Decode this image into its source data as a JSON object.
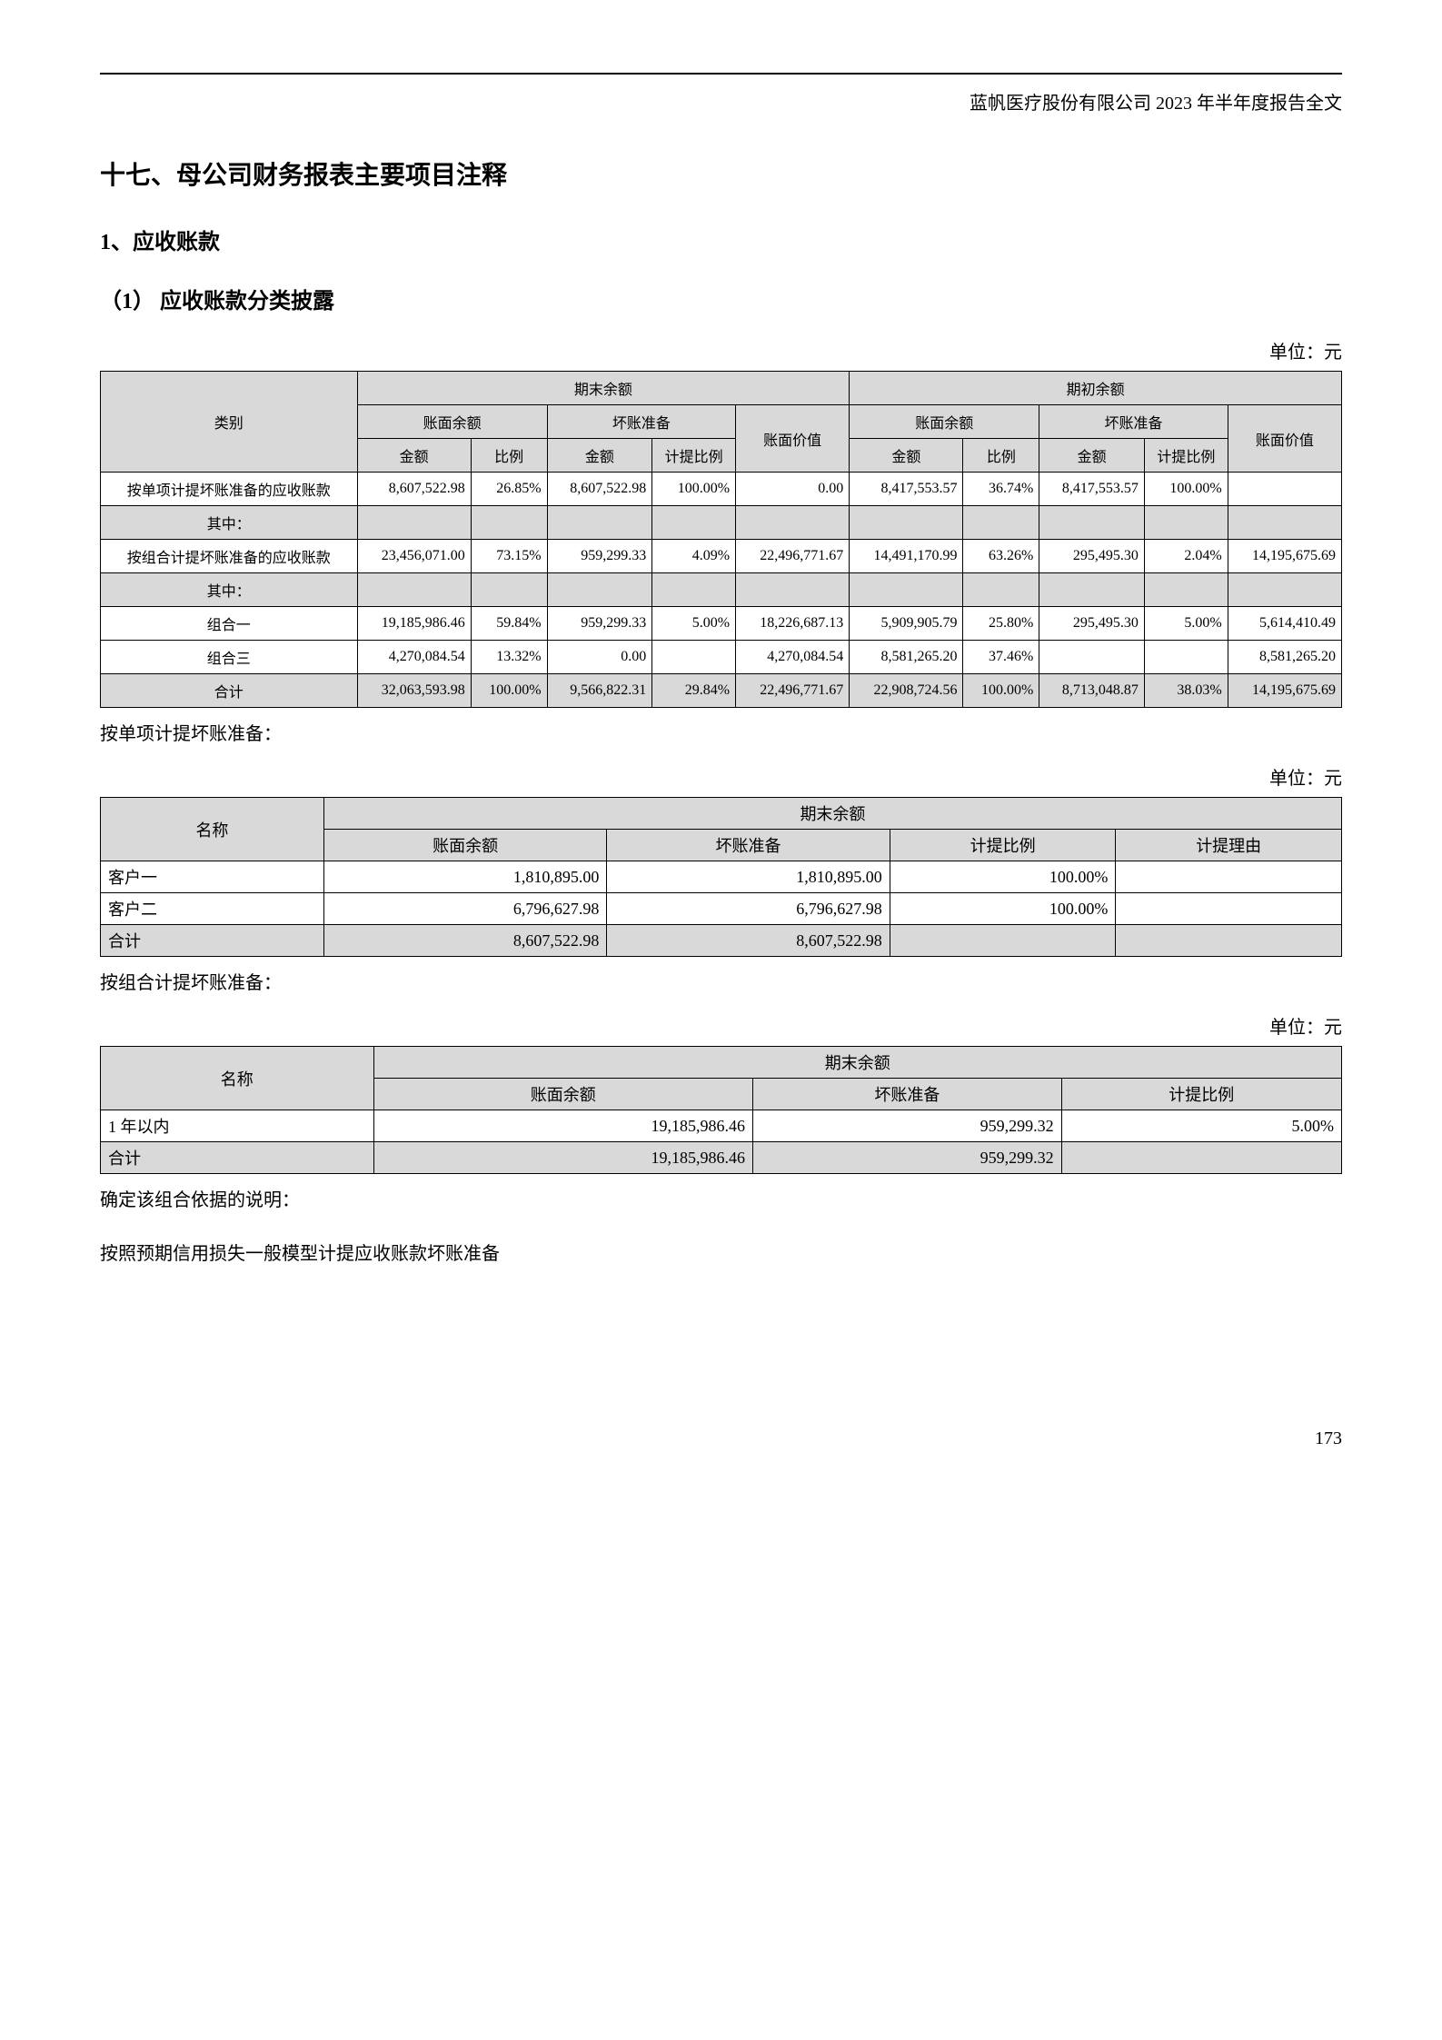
{
  "doc_header": "蓝帆医疗股份有限公司 2023 年半年度报告全文",
  "h1": "十七、母公司财务报表主要项目注释",
  "h2": "1、应收账款",
  "h3": "（1） 应收账款分类披露",
  "unit_label": "单位：元",
  "page_number": "173",
  "colors": {
    "header_bg": "#d9d9d9",
    "border": "#000000",
    "text": "#000000",
    "background": "#ffffff"
  },
  "table1": {
    "type": "table",
    "head": {
      "category": "类别",
      "end_balance": "期末余额",
      "begin_balance": "期初余额",
      "book_balance": "账面余额",
      "bad_debt": "坏账准备",
      "book_value": "账面价值",
      "amount": "金额",
      "ratio": "比例",
      "ratio2": "计提比例"
    },
    "rows": [
      {
        "label": "按单项计提坏账准备的应收账款",
        "d": [
          "8,607,522.98",
          "26.85%",
          "8,607,522.98",
          "100.00%",
          "0.00",
          "8,417,553.57",
          "36.74%",
          "8,417,553.57",
          "100.00%",
          ""
        ]
      },
      {
        "label": "其中：",
        "grey": true,
        "d": [
          "",
          "",
          "",
          "",
          "",
          "",
          "",
          "",
          "",
          ""
        ]
      },
      {
        "label": "按组合计提坏账准备的应收账款",
        "d": [
          "23,456,071.00",
          "73.15%",
          "959,299.33",
          "4.09%",
          "22,496,771.67",
          "14,491,170.99",
          "63.26%",
          "295,495.30",
          "2.04%",
          "14,195,675.69"
        ]
      },
      {
        "label": "其中：",
        "grey": true,
        "d": [
          "",
          "",
          "",
          "",
          "",
          "",
          "",
          "",
          "",
          ""
        ]
      },
      {
        "label": "组合一",
        "d": [
          "19,185,986.46",
          "59.84%",
          "959,299.33",
          "5.00%",
          "18,226,687.13",
          "5,909,905.79",
          "25.80%",
          "295,495.30",
          "5.00%",
          "5,614,410.49"
        ]
      },
      {
        "label": "组合三",
        "d": [
          "4,270,084.54",
          "13.32%",
          "0.00",
          "",
          "4,270,084.54",
          "8,581,265.20",
          "37.46%",
          "",
          "",
          "8,581,265.20"
        ]
      },
      {
        "label": "合计",
        "grey": true,
        "d": [
          "32,063,593.98",
          "100.00%",
          "9,566,822.31",
          "29.84%",
          "22,496,771.67",
          "22,908,724.56",
          "100.00%",
          "8,713,048.87",
          "38.03%",
          "14,195,675.69"
        ]
      }
    ]
  },
  "note1": "按单项计提坏账准备：",
  "table2": {
    "type": "table",
    "head": {
      "name": "名称",
      "end_balance": "期末余额",
      "book_balance": "账面余额",
      "bad_debt": "坏账准备",
      "ratio": "计提比例",
      "reason": "计提理由"
    },
    "rows": [
      {
        "label": "客户一",
        "d": [
          "1,810,895.00",
          "1,810,895.00",
          "100.00%",
          ""
        ]
      },
      {
        "label": "客户二",
        "d": [
          "6,796,627.98",
          "6,796,627.98",
          "100.00%",
          ""
        ]
      },
      {
        "label": "合计",
        "grey": true,
        "d": [
          "8,607,522.98",
          "8,607,522.98",
          "",
          ""
        ]
      }
    ]
  },
  "note2": "按组合计提坏账准备：",
  "table3": {
    "type": "table",
    "head": {
      "name": "名称",
      "end_balance": "期末余额",
      "book_balance": "账面余额",
      "bad_debt": "坏账准备",
      "ratio": "计提比例"
    },
    "rows": [
      {
        "label": "1 年以内",
        "d": [
          "19,185,986.46",
          "959,299.32",
          "5.00%"
        ]
      },
      {
        "label": "合计",
        "grey": true,
        "d": [
          "19,185,986.46",
          "959,299.32",
          ""
        ]
      }
    ]
  },
  "note3": "确定该组合依据的说明：",
  "note4": "按照预期信用损失一般模型计提应收账款坏账准备"
}
